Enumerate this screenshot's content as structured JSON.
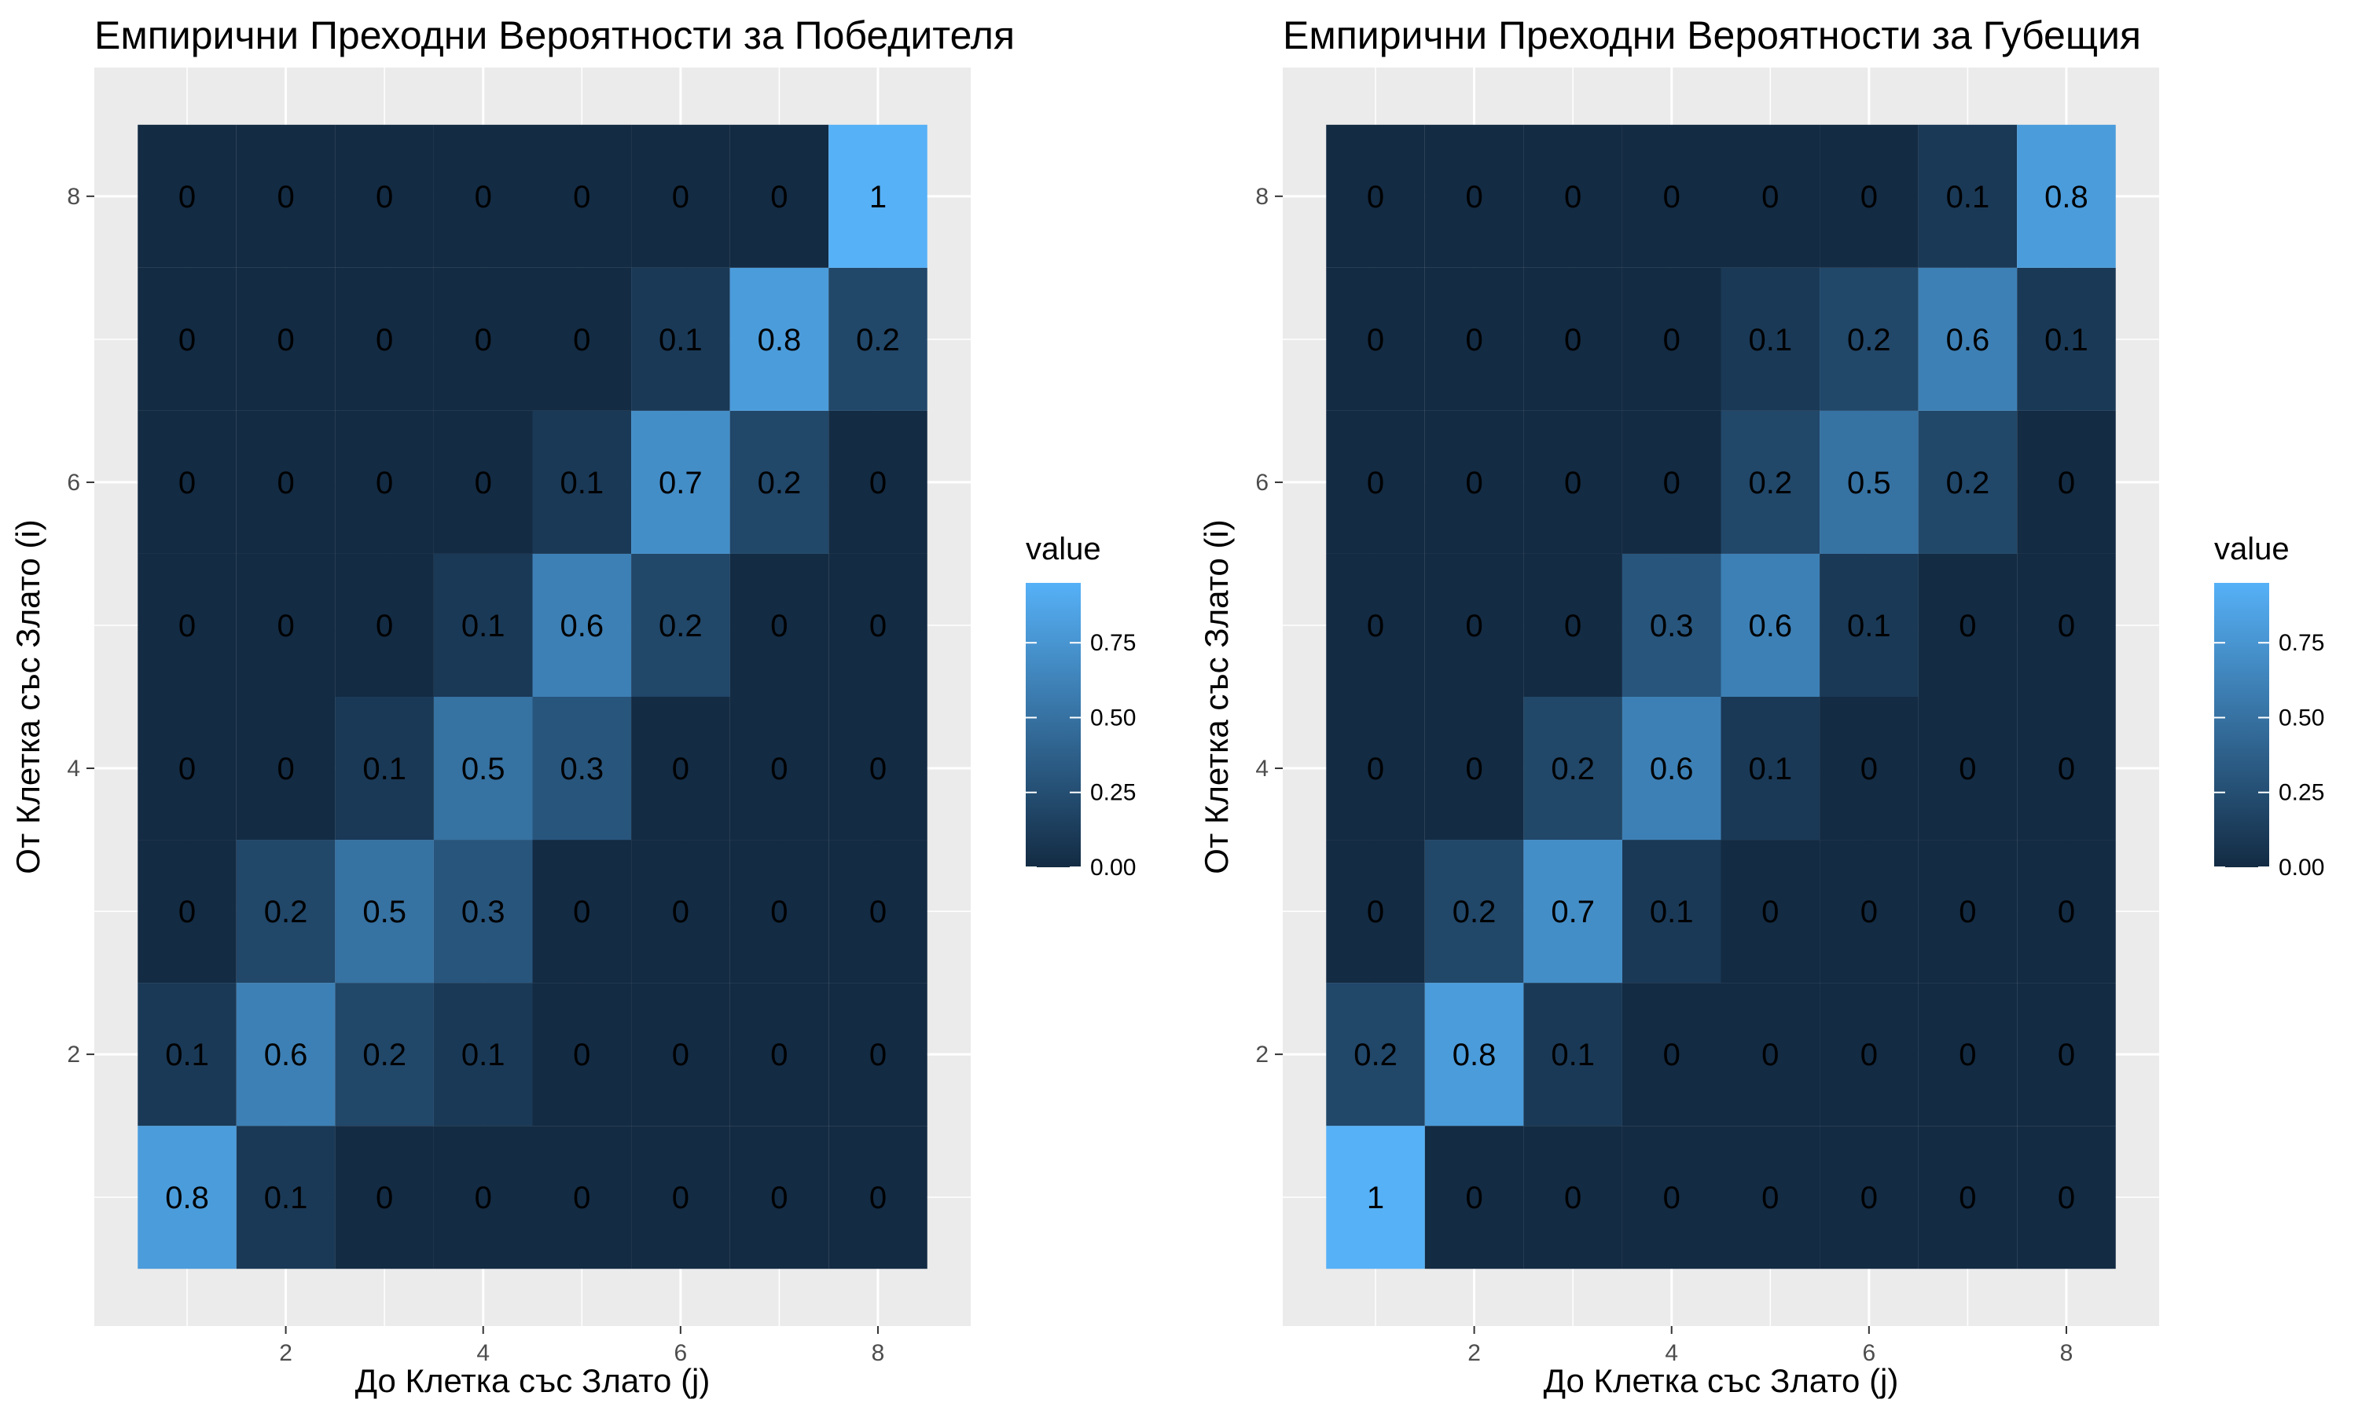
{
  "chart_data": [
    {
      "type": "heatmap",
      "title": "Емпирични Преходни Вероятности за Победителя",
      "xlabel": "До Клетка със Злато (j)",
      "ylabel": "От Клетка със Злато (i)",
      "x": [
        1,
        2,
        3,
        4,
        5,
        6,
        7,
        8
      ],
      "y": [
        1,
        2,
        3,
        4,
        5,
        6,
        7,
        8
      ],
      "x_ticks": [
        2,
        4,
        6,
        8
      ],
      "y_ticks": [
        2,
        4,
        6,
        8
      ],
      "xlim": [
        0.5,
        8.5
      ],
      "ylim": [
        0.5,
        8.5
      ],
      "grid": true,
      "legend": {
        "title": "value",
        "position": "right",
        "ticks": [
          "0.00",
          "0.25",
          "0.50",
          "0.75"
        ],
        "range": [
          0,
          0.95
        ]
      },
      "values_by_row_from_i": {
        "8": [
          0,
          0,
          0,
          0,
          0,
          0,
          0,
          1
        ],
        "7": [
          0,
          0,
          0,
          0,
          0,
          0.1,
          0.8,
          0.2
        ],
        "6": [
          0,
          0,
          0,
          0,
          0.1,
          0.7,
          0.2,
          0
        ],
        "5": [
          0,
          0,
          0,
          0.1,
          0.6,
          0.2,
          0,
          0
        ],
        "4": [
          0,
          0,
          0.1,
          0.5,
          0.3,
          0,
          0,
          0
        ],
        "3": [
          0,
          0.2,
          0.5,
          0.3,
          0,
          0,
          0,
          0
        ],
        "2": [
          0.1,
          0.6,
          0.2,
          0.1,
          0,
          0,
          0,
          0
        ],
        "1": [
          0.8,
          0.1,
          0,
          0,
          0,
          0,
          0,
          0
        ]
      }
    },
    {
      "type": "heatmap",
      "title": "Емпирични Преходни Вероятности за Губещия",
      "xlabel": "До Клетка със Злато (j)",
      "ylabel": "От Клетка със Злато (i)",
      "x": [
        1,
        2,
        3,
        4,
        5,
        6,
        7,
        8
      ],
      "y": [
        1,
        2,
        3,
        4,
        5,
        6,
        7,
        8
      ],
      "x_ticks": [
        2,
        4,
        6,
        8
      ],
      "y_ticks": [
        2,
        4,
        6,
        8
      ],
      "xlim": [
        0.5,
        8.5
      ],
      "ylim": [
        0.5,
        8.5
      ],
      "grid": true,
      "legend": {
        "title": "value",
        "position": "right",
        "ticks": [
          "0.00",
          "0.25",
          "0.50",
          "0.75"
        ],
        "range": [
          0,
          0.95
        ]
      },
      "values_by_row_from_i": {
        "8": [
          0,
          0,
          0,
          0,
          0,
          0,
          0.1,
          0.8
        ],
        "7": [
          0,
          0,
          0,
          0,
          0.1,
          0.2,
          0.6,
          0.1
        ],
        "6": [
          0,
          0,
          0,
          0,
          0.2,
          0.5,
          0.2,
          0
        ],
        "5": [
          0,
          0,
          0,
          0.3,
          0.6,
          0.1,
          0,
          0
        ],
        "4": [
          0,
          0,
          0.2,
          0.6,
          0.1,
          0,
          0,
          0
        ],
        "3": [
          0,
          0.2,
          0.7,
          0.1,
          0,
          0,
          0,
          0
        ],
        "2": [
          0.2,
          0.8,
          0.1,
          0,
          0,
          0,
          0,
          0
        ],
        "1": [
          1,
          0,
          0,
          0,
          0,
          0,
          0,
          0
        ]
      }
    }
  ],
  "colors": {
    "low": "#132B43",
    "high": "#56B1F7",
    "panel_background": "#EBEBEB",
    "grid": "#FFFFFF"
  }
}
